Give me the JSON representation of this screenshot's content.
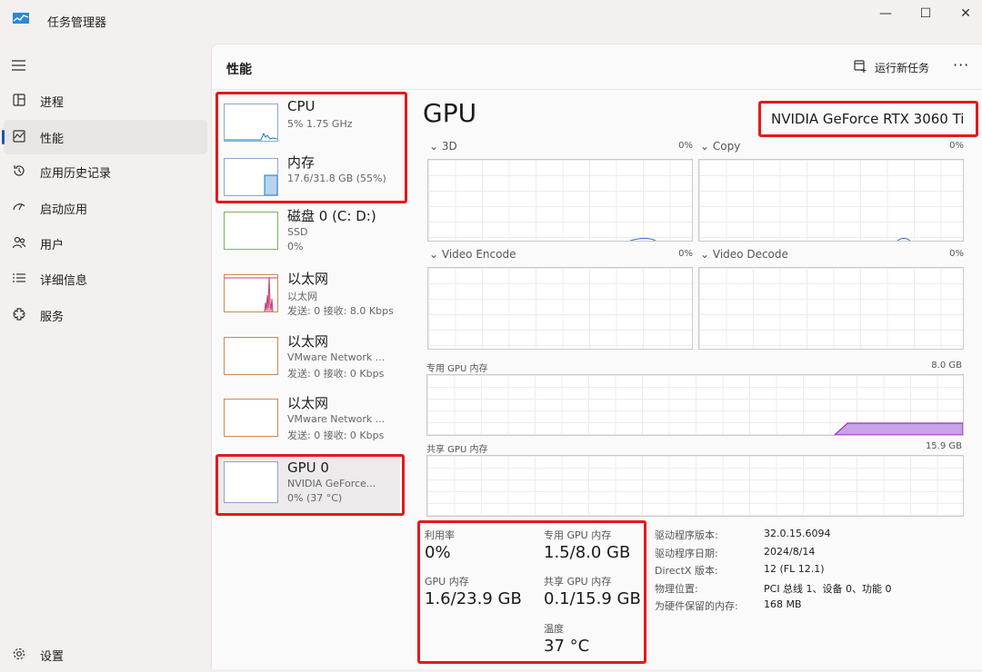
{
  "window": {
    "title": "任务管理器"
  },
  "nav": {
    "items": [
      {
        "label": "进程",
        "icon": "processes-icon"
      },
      {
        "label": "性能",
        "icon": "performance-icon"
      },
      {
        "label": "应用历史记录",
        "icon": "app-history-icon"
      },
      {
        "label": "启动应用",
        "icon": "startup-icon"
      },
      {
        "label": "用户",
        "icon": "users-icon"
      },
      {
        "label": "详细信息",
        "icon": "details-icon"
      },
      {
        "label": "服务",
        "icon": "services-icon"
      }
    ],
    "settings": "设置"
  },
  "header": {
    "title": "性能",
    "run_task": "运行新任务",
    "more": "···"
  },
  "devices": [
    {
      "name": "CPU",
      "sub1": "5% 1.75 GHz",
      "sub2": ""
    },
    {
      "name": "内存",
      "sub1": "17.6/31.8 GB (55%)",
      "sub2": ""
    },
    {
      "name": "磁盘 0 (C: D:)",
      "sub1": "SSD",
      "sub2": "0%"
    },
    {
      "name": "以太网",
      "sub1": "以太网",
      "sub2": "发送: 0 接收: 8.0 Kbps"
    },
    {
      "name": "以太网",
      "sub1": "VMware Network ...",
      "sub2": "发送: 0 接收: 0 Kbps"
    },
    {
      "name": "以太网",
      "sub1": "VMware Network ...",
      "sub2": "发送: 0 接收: 0 Kbps"
    },
    {
      "name": "GPU 0",
      "sub1": "NVIDIA GeForce...",
      "sub2": "0% (37 °C)"
    }
  ],
  "detail": {
    "title": "GPU",
    "model": "NVIDIA GeForce RTX 3060 Ti",
    "engines": [
      {
        "label": "3D",
        "value": "0%"
      },
      {
        "label": "Copy",
        "value": "0%"
      },
      {
        "label": "Video Encode",
        "value": "0%"
      },
      {
        "label": "Video Decode",
        "value": "0%"
      }
    ],
    "dedicated_mem": {
      "label": "专用 GPU 内存",
      "max": "8.0 GB"
    },
    "shared_mem": {
      "label": "共享 GPU 内存",
      "max": "15.9 GB"
    },
    "stats": {
      "utilization": {
        "label": "利用率",
        "value": "0%"
      },
      "dedicated": {
        "label": "专用 GPU 内存",
        "value": "1.5/8.0 GB"
      },
      "gpu_mem": {
        "label": "GPU 内存",
        "value": "1.6/23.9 GB"
      },
      "shared": {
        "label": "共享 GPU 内存",
        "value": "0.1/15.9 GB"
      },
      "temp": {
        "label": "温度",
        "value": "37 °C"
      }
    },
    "info": [
      {
        "k": "驱动程序版本:",
        "v": "32.0.15.6094"
      },
      {
        "k": "驱动程序日期:",
        "v": "2024/8/14"
      },
      {
        "k": "DirectX 版本:",
        "v": "12 (FL 12.1)"
      },
      {
        "k": "物理位置:",
        "v": "PCI 总线 1、设备 0、功能 0"
      },
      {
        "k": "为硬件保留的内存:",
        "v": "168 MB"
      }
    ]
  },
  "colors": {
    "accent": "#1a56b3",
    "highlight_box": "#e3191c",
    "cpu_line": "#117dbb",
    "memory_fill": "#8b12ae",
    "ethernet_line": "#a74f01",
    "gpu_mem_fill": "#c8a2e8"
  }
}
